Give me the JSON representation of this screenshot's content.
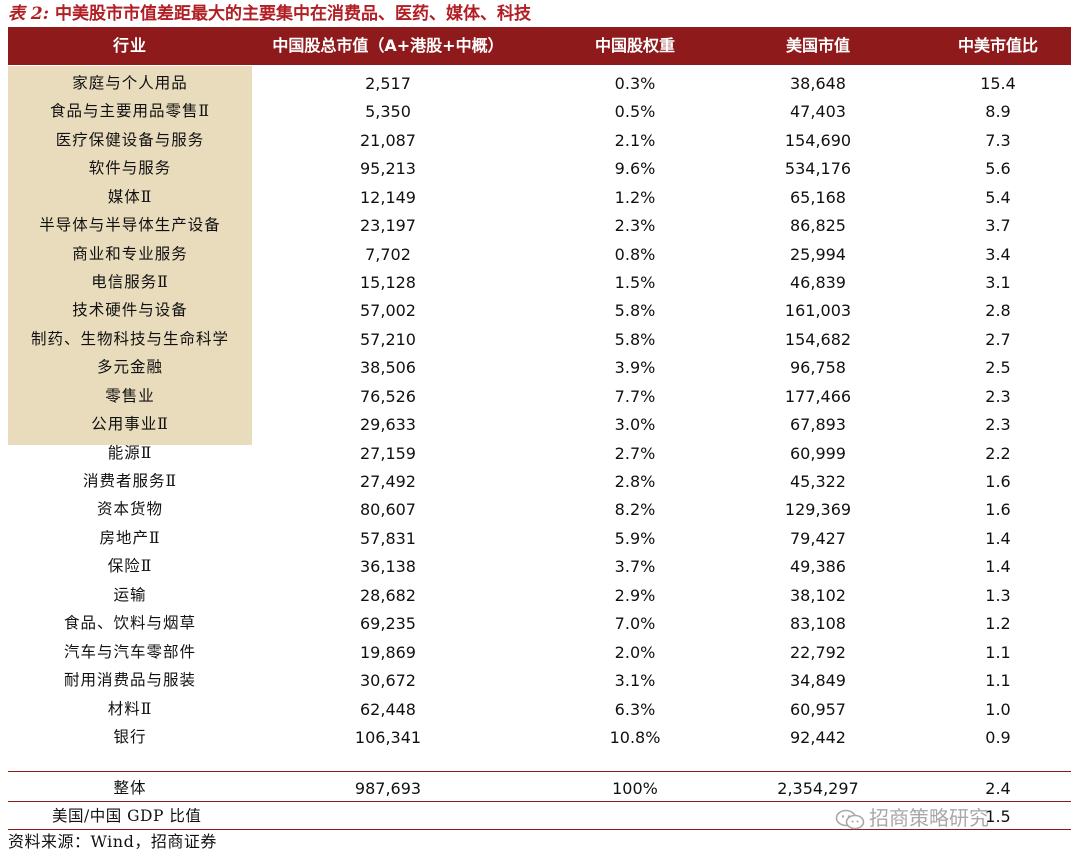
{
  "title": {
    "label": "表 2:",
    "text": "中美股市市值差距最大的主要集中在消费品、医药、媒体、科技"
  },
  "headers": [
    "行业",
    "中国股总市值（A+港股+中概）",
    "中国股权重",
    "美国市值",
    "中美市值比"
  ],
  "rows": [
    [
      "家庭与个人用品",
      "2,517",
      "0.3%",
      "38,648",
      "15.4"
    ],
    [
      "食品与主要用品零售Ⅱ",
      "5,350",
      "0.5%",
      "47,403",
      "8.9"
    ],
    [
      "医疗保健设备与服务",
      "21,087",
      "2.1%",
      "154,690",
      "7.3"
    ],
    [
      "软件与服务",
      "95,213",
      "9.6%",
      "534,176",
      "5.6"
    ],
    [
      "媒体Ⅱ",
      "12,149",
      "1.2%",
      "65,168",
      "5.4"
    ],
    [
      "半导体与半导体生产设备",
      "23,197",
      "2.3%",
      "86,825",
      "3.7"
    ],
    [
      "商业和专业服务",
      "7,702",
      "0.8%",
      "25,994",
      "3.4"
    ],
    [
      "电信服务Ⅱ",
      "15,128",
      "1.5%",
      "46,839",
      "3.1"
    ],
    [
      "技术硬件与设备",
      "57,002",
      "5.8%",
      "161,003",
      "2.8"
    ],
    [
      "制药、生物科技与生命科学",
      "57,210",
      "5.8%",
      "154,682",
      "2.7"
    ],
    [
      "多元金融",
      "38,506",
      "3.9%",
      "96,758",
      "2.5"
    ],
    [
      "零售业",
      "76,526",
      "7.7%",
      "177,466",
      "2.3"
    ],
    [
      "公用事业Ⅱ",
      "29,633",
      "3.0%",
      "67,893",
      "2.3"
    ],
    [
      "能源Ⅱ",
      "27,159",
      "2.7%",
      "60,999",
      "2.2"
    ],
    [
      "消费者服务Ⅱ",
      "27,492",
      "2.8%",
      "45,322",
      "1.6"
    ],
    [
      "资本货物",
      "80,607",
      "8.2%",
      "129,369",
      "1.6"
    ],
    [
      "房地产Ⅱ",
      "57,831",
      "5.9%",
      "79,427",
      "1.4"
    ],
    [
      "保险Ⅱ",
      "36,138",
      "3.7%",
      "49,386",
      "1.4"
    ],
    [
      "运输",
      "28,682",
      "2.9%",
      "38,102",
      "1.3"
    ],
    [
      "食品、饮料与烟草",
      "69,235",
      "7.0%",
      "83,108",
      "1.2"
    ],
    [
      "汽车与汽车零部件",
      "19,869",
      "2.0%",
      "22,792",
      "1.1"
    ],
    [
      "耐用消费品与服装",
      "30,672",
      "3.1%",
      "34,849",
      "1.1"
    ],
    [
      "材料Ⅱ",
      "62,448",
      "6.3%",
      "60,957",
      "1.0"
    ],
    [
      "银行",
      "106,341",
      "10.8%",
      "92,442",
      "0.9"
    ]
  ],
  "total": [
    "整体",
    "987,693",
    "100%",
    "2,354,297",
    "2.4"
  ],
  "gdp": {
    "label": "美国/中国 GDP 比值",
    "value": "1.5"
  },
  "source": "资料来源：Wind，招商证券",
  "watermark": {
    "text": "招商策略研究",
    "icon": "wechat-icon"
  },
  "colors": {
    "header_bg": "#8e1a1c",
    "highlight_bg": "#e8dcbd",
    "title": "#b11f24"
  }
}
